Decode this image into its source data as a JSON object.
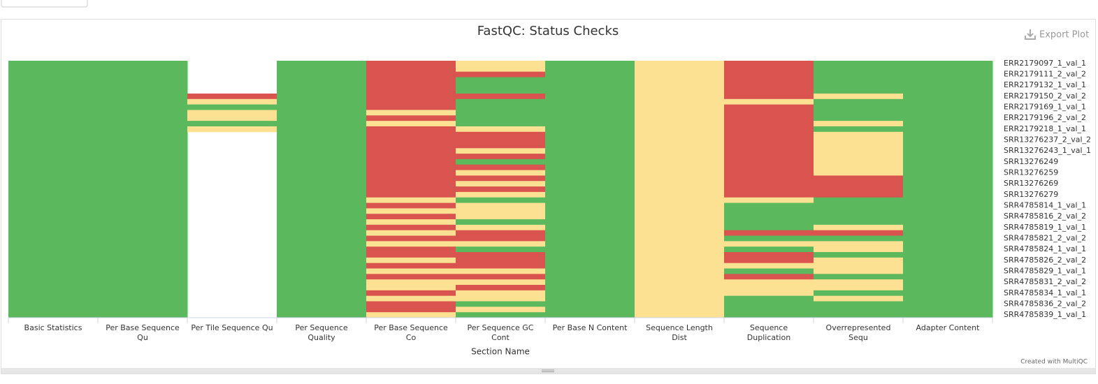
{
  "chart_data": {
    "type": "heatmap",
    "title": "FastQC: Status Checks",
    "x_label": "Section Name",
    "export_button": "Export Plot",
    "credit": "Created with MultiQC",
    "x_categories": [
      "Basic Statistics",
      "Per Base Sequence Qu",
      "Per Tile Sequence Qu",
      "Per Sequence Quality",
      "Per Base Sequence Co",
      "Per Sequence GC Cont",
      "Per Base N Content",
      "Sequence Length Dist",
      "Sequence Duplication",
      "Overrepresented Sequ",
      "Adapter Content"
    ],
    "y_categories": [
      "ERR2179097_1_val_1",
      null,
      "ERR2179111_2_val_2",
      null,
      "ERR2179132_1_val_1",
      null,
      "ERR2179150_2_val_2",
      null,
      "ERR2179169_1_val_1",
      null,
      "ERR2179196_2_val_2",
      null,
      "ERR2179218_1_val_1",
      null,
      "SRR13276237_2_val_2",
      null,
      "SRR13276243_1_val_1",
      null,
      "SRR13276249",
      null,
      "SRR13276259",
      null,
      "SRR13276269",
      null,
      "SRR13276279",
      null,
      "SRR4785814_1_val_1",
      null,
      "SRR4785816_2_val_2",
      null,
      "SRR4785819_1_val_1",
      null,
      "SRR4785821_2_val_2",
      null,
      "SRR4785824_1_val_1",
      null,
      "SRR4785826_2_val_2",
      null,
      "SRR4785829_1_val_1",
      null,
      "SRR4785831_2_val_2",
      null,
      "SRR4785834_1_val_1",
      null,
      "SRR4785836_2_val_2",
      null,
      "SRR4785839_1_val_1"
    ],
    "colorscale": [
      {
        "value": 0,
        "color": "#d9534f"
      },
      {
        "value": 0.5,
        "color": "#fbe191"
      },
      {
        "value": 1,
        "color": "#5cb85c"
      }
    ],
    "values": [
      [
        1,
        1,
        1,
        1,
        1,
        1,
        1,
        1,
        1,
        1,
        1,
        1,
        1,
        1,
        1,
        1,
        1,
        1,
        1,
        1,
        1,
        1,
        1,
        1,
        1,
        1,
        1,
        1,
        1,
        1,
        1,
        1,
        1,
        1,
        1,
        1,
        1,
        1,
        1,
        1,
        1,
        1,
        1,
        1,
        1,
        1,
        1
      ],
      [
        1,
        1,
        1,
        1,
        1,
        1,
        1,
        1,
        1,
        1,
        1,
        1,
        1,
        1,
        1,
        1,
        1,
        1,
        1,
        1,
        1,
        1,
        1,
        1,
        1,
        1,
        1,
        1,
        1,
        1,
        1,
        1,
        1,
        1,
        1,
        1,
        1,
        1,
        1,
        1,
        1,
        1,
        1,
        1,
        1,
        1,
        1
      ],
      [
        null,
        null,
        null,
        null,
        null,
        null,
        0,
        0.5,
        1,
        0.5,
        0.5,
        1,
        0.5,
        null,
        null,
        null,
        null,
        null,
        null,
        null,
        null,
        null,
        null,
        null,
        null,
        null,
        null,
        null,
        null,
        null,
        null,
        null,
        null,
        null,
        null,
        null,
        null,
        null,
        null,
        null,
        null,
        null,
        null,
        null,
        null,
        null,
        null
      ],
      [
        1,
        1,
        1,
        1,
        1,
        1,
        1,
        1,
        1,
        1,
        1,
        1,
        1,
        1,
        1,
        1,
        1,
        1,
        1,
        1,
        1,
        1,
        1,
        1,
        1,
        1,
        1,
        1,
        1,
        1,
        1,
        1,
        1,
        1,
        1,
        1,
        1,
        1,
        1,
        1,
        1,
        1,
        1,
        1,
        1,
        1,
        1
      ],
      [
        0,
        0,
        0,
        0,
        0,
        0,
        0,
        0,
        0,
        0.5,
        0,
        0.5,
        0,
        0,
        0,
        0,
        0,
        0,
        0,
        0,
        0,
        0,
        0,
        0,
        0,
        0.5,
        0,
        0.5,
        0,
        0.5,
        0,
        0.5,
        0,
        0.5,
        0,
        0,
        0.5,
        0,
        0.5,
        0,
        0.5,
        0.5,
        0,
        0.5,
        0,
        0,
        0.5
      ],
      [
        0.5,
        0.5,
        0,
        1,
        1,
        1,
        0,
        1,
        1,
        1,
        1,
        1,
        0.5,
        0,
        0,
        0,
        0.5,
        0,
        1,
        0,
        0.5,
        0,
        0.5,
        0,
        0.5,
        1,
        0.5,
        0.5,
        0.5,
        1,
        0.5,
        0,
        0,
        0.5,
        1,
        0,
        0,
        0,
        0.5,
        0,
        0.5,
        0,
        0.5,
        0.5,
        1,
        0.5,
        1
      ],
      [
        1,
        1,
        1,
        1,
        1,
        1,
        1,
        1,
        1,
        1,
        1,
        1,
        1,
        1,
        1,
        1,
        1,
        1,
        1,
        1,
        1,
        1,
        1,
        1,
        1,
        1,
        1,
        1,
        1,
        1,
        1,
        1,
        1,
        1,
        1,
        1,
        1,
        1,
        1,
        1,
        1,
        1,
        1,
        1,
        1,
        1,
        1
      ],
      [
        0.5,
        0.5,
        0.5,
        0.5,
        0.5,
        0.5,
        0.5,
        0.5,
        0.5,
        0.5,
        0.5,
        0.5,
        0.5,
        0.5,
        0.5,
        0.5,
        0.5,
        0.5,
        0.5,
        0.5,
        0.5,
        0.5,
        0.5,
        0.5,
        0.5,
        0.5,
        0.5,
        0.5,
        0.5,
        0.5,
        0.5,
        0.5,
        0.5,
        0.5,
        0.5,
        0.5,
        0.5,
        0.5,
        0.5,
        0.5,
        0.5,
        0.5,
        0.5,
        0.5,
        0.5,
        0.5,
        0.5
      ],
      [
        0,
        0,
        0,
        0,
        0,
        0,
        0,
        0.5,
        0,
        0,
        0,
        0,
        0,
        0,
        0,
        0,
        0,
        0,
        0,
        0,
        0,
        0,
        0,
        0,
        0,
        0.5,
        1,
        1,
        1,
        1,
        1,
        0,
        1,
        0.5,
        1,
        0,
        0,
        0.5,
        1,
        0,
        0.5,
        0.5,
        0.5,
        1,
        1,
        1,
        1
      ],
      [
        1,
        1,
        1,
        1,
        1,
        1,
        0.5,
        1,
        1,
        1,
        1,
        0.5,
        1,
        0.5,
        0.5,
        0.5,
        0.5,
        0.5,
        0.5,
        0.5,
        0.5,
        0,
        0,
        0,
        0,
        1,
        1,
        1,
        1,
        1,
        0.5,
        0,
        1,
        0.5,
        0.5,
        1,
        0.5,
        0.5,
        0.5,
        1,
        0.5,
        0.5,
        1,
        0.5,
        1,
        1,
        1
      ],
      [
        1,
        1,
        1,
        1,
        1,
        1,
        1,
        1,
        1,
        1,
        1,
        1,
        1,
        1,
        1,
        1,
        1,
        1,
        1,
        1,
        1,
        1,
        1,
        1,
        1,
        1,
        1,
        1,
        1,
        1,
        1,
        1,
        1,
        1,
        1,
        1,
        1,
        1,
        1,
        1,
        1,
        1,
        1,
        1,
        1,
        1,
        1
      ]
    ]
  }
}
